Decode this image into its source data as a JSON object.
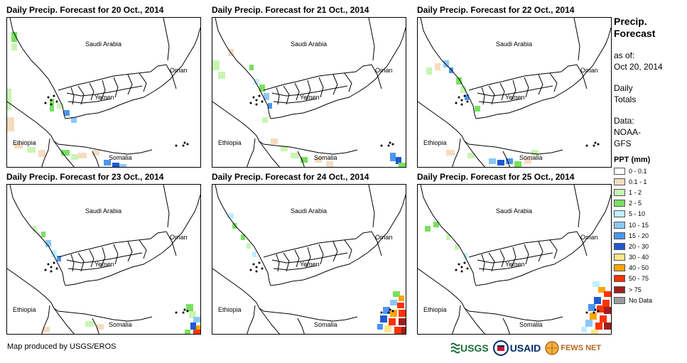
{
  "panels": [
    {
      "title": "Daily Precip. Forecast for 20 Oct., 2014",
      "labels": {
        "saudi": "Saudi Arabia",
        "oman": "Oman",
        "yemen": "Yemen",
        "ethiopia": "Ethiopia",
        "somalia": "Somalia"
      }
    },
    {
      "title": "Daily Precip. Forecast for 21 Oct., 2014",
      "labels": {
        "saudi": "Saudi Arabia",
        "oman": "Oman",
        "yemen": "Yemen",
        "ethiopia": "Ethiopia",
        "somalia": "Somalia"
      }
    },
    {
      "title": "Daily Precip. Forecast for 22 Oct., 2014",
      "labels": {
        "saudi": "Saudi Arabia",
        "oman": "Oman",
        "yemen": "Yemen",
        "ethiopia": "Ethiopia",
        "somalia": "Somalia"
      }
    },
    {
      "title": "Daily Precip. Forecast for 23 Oct., 2014",
      "labels": {
        "saudi": "Saudi Arabia",
        "oman": "Oman",
        "yemen": "Yemen",
        "ethiopia": "Ethiopia",
        "somalia": "Somalia"
      }
    },
    {
      "title": "Daily Precip. Forecast for 24 Oct., 2014",
      "labels": {
        "saudi": "Saudi Arabia",
        "oman": "Oman",
        "yemen": "Yemen",
        "ethiopia": "Ethiopia",
        "somalia": "Somalia"
      }
    },
    {
      "title": "Daily Precip. Forecast for 25 Oct., 2014",
      "labels": {
        "saudi": "Saudi Arabia",
        "oman": "Oman",
        "yemen": "Yemen",
        "ethiopia": "Ethiopia",
        "somalia": "Somalia"
      }
    }
  ],
  "sidebar": {
    "title_line1": "Precip.",
    "title_line2": "Forecast",
    "asof_line1": "as of:",
    "asof_line2": "Oct 20, 2014",
    "totals_line1": "Daily",
    "totals_line2": "Totals",
    "data_line1": "Data:",
    "data_line2": "NOAA-",
    "data_line3": "GFS"
  },
  "legend": {
    "title": "PPT (mm)",
    "items": [
      {
        "label": "0 - 0.1",
        "color": "#ffffff"
      },
      {
        "label": "0.1 - 1",
        "color": "#f5dcc0"
      },
      {
        "label": "1 - 2",
        "color": "#c8f5b4"
      },
      {
        "label": "2 - 5",
        "color": "#78e060"
      },
      {
        "label": "5 - 10",
        "color": "#bfefff"
      },
      {
        "label": "10 - 15",
        "color": "#8cc8f5"
      },
      {
        "label": "15 - 20",
        "color": "#4b96f0"
      },
      {
        "label": "20 - 30",
        "color": "#1e5ad2"
      },
      {
        "label": "30 - 40",
        "color": "#ffe68c"
      },
      {
        "label": "40 - 50",
        "color": "#ffa500"
      },
      {
        "label": "50 - 75",
        "color": "#ff3200"
      },
      {
        "label": "> 75",
        "color": "#a01e1e"
      },
      {
        "label": "No Data",
        "color": "#9b9b9b"
      }
    ]
  },
  "credit": "Map produced by USGS/EROS",
  "logos": {
    "usgs": "USGS",
    "usaid": "USAID",
    "fewsnet": "FEWS NET"
  }
}
